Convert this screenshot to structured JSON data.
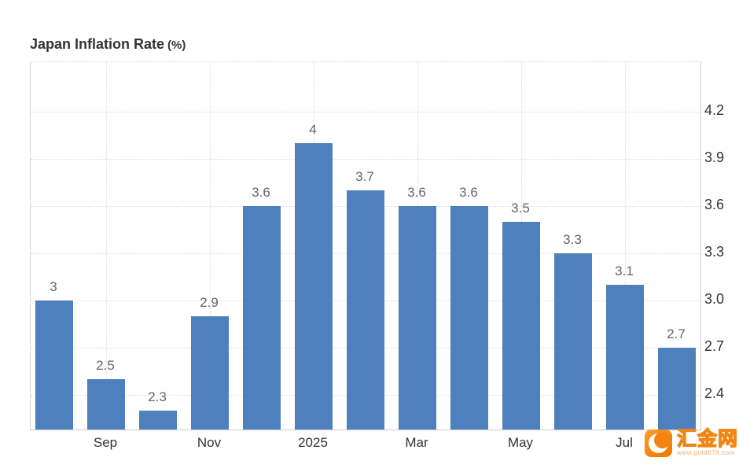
{
  "chart_data": {
    "type": "bar",
    "title": "Japan Inflation Rate",
    "unit": "(%)",
    "xlabel": "",
    "ylabel": "",
    "categories": [
      "",
      "Sep",
      "",
      "Nov",
      "",
      "2025",
      "",
      "Mar",
      "",
      "May",
      "",
      "Jul",
      ""
    ],
    "values": [
      3,
      2.5,
      2.3,
      2.9,
      3.6,
      4,
      3.7,
      3.6,
      3.6,
      3.5,
      3.3,
      3.1,
      2.7
    ],
    "bar_labels": [
      "3",
      "2.5",
      "2.3",
      "2.9",
      "3.6",
      "4",
      "3.7",
      "3.6",
      "3.6",
      "3.5",
      "3.3",
      "3.1",
      "2.7"
    ],
    "y_ticks": [
      "4.2",
      "3.9",
      "3.6",
      "3.3",
      "3.0",
      "2.7",
      "2.4"
    ],
    "ylim": [
      2.18,
      4.515
    ],
    "y_axis_side": "right",
    "grid": "dotted",
    "legend": "none",
    "bar_color": "#4d80bc"
  },
  "logo": {
    "name": "汇金网",
    "url": "www.gold678.com"
  },
  "colors": {
    "bar": "#4d80bc",
    "title_text": "#333333",
    "axis_label": "#333333",
    "value_label": "#63666a",
    "gridline": "#dcdcdc",
    "axis_line": "#cccccc",
    "logo_orange": "#f28511",
    "background": "#ffffff"
  }
}
